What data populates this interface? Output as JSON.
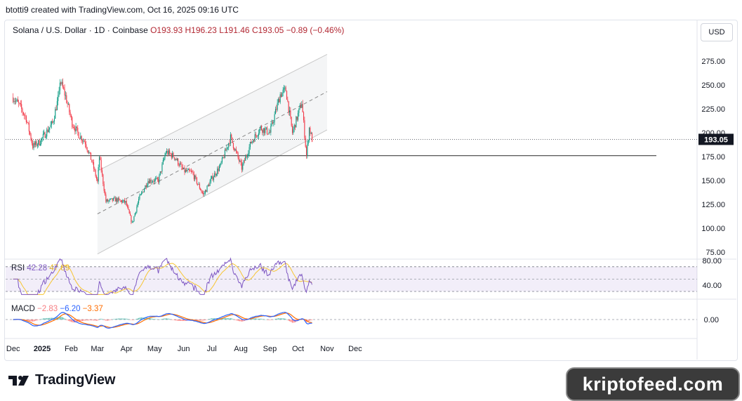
{
  "attribution": "btotti9 created with TradingView.com, Oct 16, 2025 09:16 UTC",
  "header": {
    "symbol": "Solana / U.S. Dollar · 1D · Coinbase",
    "open": "O193.93",
    "high": "H196.23",
    "low": "L191.46",
    "close": "C193.05",
    "change": "−0.89 (−0.46%)"
  },
  "currency_button": "USD",
  "rsi_legend": {
    "label": "RSI",
    "value": "42.28",
    "ma": "47.89"
  },
  "macd_legend": {
    "label": "MACD",
    "hist": "−2.83",
    "macd": "−6.20",
    "signal": "−3.37"
  },
  "brand": {
    "name": "TradingView",
    "watermark": "kriptofeed.com"
  },
  "colors": {
    "up": "#089981",
    "down": "#f23645",
    "rsi": "#7e57c2",
    "rsi_ma": "#f7c531",
    "macd": "#2962ff",
    "signal": "#ff6d00",
    "channel": "#c8c8c8"
  },
  "chart_data": [
    {
      "type": "candlestick",
      "title": "",
      "ylabel": "",
      "ylim": [
        75,
        290
      ],
      "y_ticks": [
        "275.00",
        "250.00",
        "225.00",
        "200.00",
        "175.00",
        "150.00",
        "125.00",
        "100.00",
        "75.00"
      ],
      "x_ticks": [
        "Dec",
        "2025",
        "Feb",
        "Mar",
        "Apr",
        "May",
        "Jun",
        "Jul",
        "Aug",
        "Sep",
        "Oct",
        "Nov",
        "Dec"
      ],
      "last_price_label": "193.05",
      "horizontal_level": 176,
      "channel": {
        "start": {
          "date": "2025-03-01",
          "upper": 160,
          "middle": 115,
          "lower": 73
        },
        "end": {
          "date": "2025-11-01",
          "upper": 282,
          "middle": 243,
          "lower": 203
        }
      },
      "anchors": [
        [
          "2024-12-01",
          237
        ],
        [
          "2024-12-08",
          228
        ],
        [
          "2024-12-15",
          215
        ],
        [
          "2024-12-22",
          186
        ],
        [
          "2024-12-29",
          190
        ],
        [
          "2025-01-05",
          200
        ],
        [
          "2025-01-12",
          210
        ],
        [
          "2025-01-19",
          240
        ],
        [
          "2025-01-20",
          255
        ],
        [
          "2025-01-26",
          238
        ],
        [
          "2025-02-02",
          210
        ],
        [
          "2025-02-09",
          198
        ],
        [
          "2025-02-16",
          190
        ],
        [
          "2025-02-23",
          170
        ],
        [
          "2025-03-01",
          148
        ],
        [
          "2025-03-03",
          175
        ],
        [
          "2025-03-10",
          128
        ],
        [
          "2025-03-20",
          130
        ],
        [
          "2025-03-31",
          127
        ],
        [
          "2025-04-07",
          105
        ],
        [
          "2025-04-14",
          130
        ],
        [
          "2025-04-24",
          150
        ],
        [
          "2025-05-05",
          150
        ],
        [
          "2025-05-13",
          180
        ],
        [
          "2025-05-22",
          175
        ],
        [
          "2025-06-01",
          160
        ],
        [
          "2025-06-10",
          158
        ],
        [
          "2025-06-22",
          135
        ],
        [
          "2025-07-01",
          152
        ],
        [
          "2025-07-10",
          165
        ],
        [
          "2025-07-21",
          195
        ],
        [
          "2025-08-02",
          163
        ],
        [
          "2025-08-12",
          190
        ],
        [
          "2025-08-22",
          205
        ],
        [
          "2025-09-01",
          200
        ],
        [
          "2025-09-12",
          240
        ],
        [
          "2025-09-18",
          245
        ],
        [
          "2025-09-25",
          200
        ],
        [
          "2025-10-05",
          232
        ],
        [
          "2025-10-10",
          176
        ],
        [
          "2025-10-13",
          205
        ],
        [
          "2025-10-16",
          193
        ]
      ]
    },
    {
      "type": "line",
      "title": "RSI",
      "ylim": [
        25,
        85
      ],
      "y_ticks": [
        "80.00",
        "40.00"
      ],
      "bands": [
        70,
        50,
        30
      ]
    },
    {
      "type": "line",
      "title": "MACD",
      "ylim": [
        -22,
        22
      ],
      "y_ticks": [
        "0.00"
      ]
    }
  ]
}
